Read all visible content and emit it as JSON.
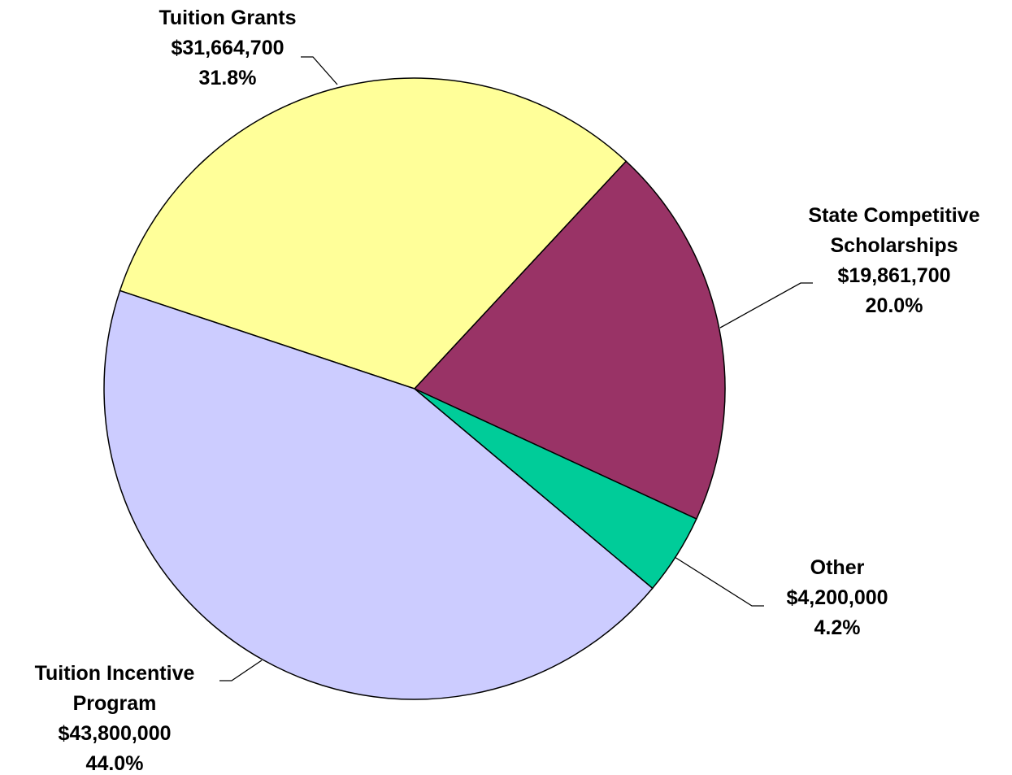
{
  "chart_data": {
    "type": "pie",
    "categories": [
      "Tuition Grants",
      "State Competitive Scholarships",
      "Other",
      "Tuition Incentive Program"
    ],
    "values": [
      31664700,
      19861700,
      4200000,
      43800000
    ],
    "value_labels": [
      "$31,664,700",
      "$19,861,700",
      "$4,200,000",
      "$43,800,000"
    ],
    "percents": [
      31.8,
      20.0,
      4.2,
      44.0
    ],
    "percent_labels": [
      "31.8%",
      "20.0%",
      "4.2%",
      "44.0%"
    ],
    "colors": [
      "#ffff99",
      "#993366",
      "#00cc99",
      "#ccccff"
    ]
  }
}
